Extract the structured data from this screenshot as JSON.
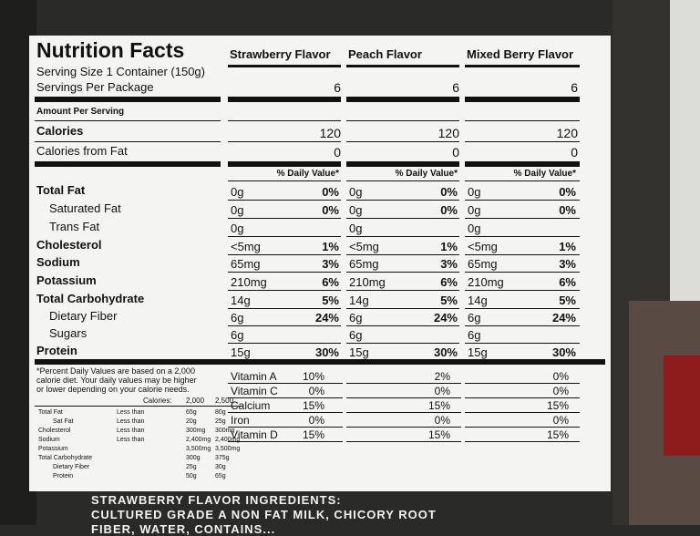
{
  "header": {
    "title": "Nutrition Facts",
    "serving_size": "Serving Size 1 Container (150g)",
    "servings_per": "Servings Per Package",
    "amount_per": "Amount Per Serving"
  },
  "flavors": [
    "Strawberry Flavor",
    "Peach Flavor",
    "Mixed Berry Flavor"
  ],
  "servings": [
    "6",
    "6",
    "6"
  ],
  "labels": {
    "calories": "Calories",
    "calories_fat": "Calories from Fat",
    "total_fat": "Total Fat",
    "sat_fat": "Saturated Fat",
    "trans_fat": "Trans Fat",
    "cholesterol": "Cholesterol",
    "sodium": "Sodium",
    "potassium": "Potassium",
    "carbs": "Total Carbohydrate",
    "fiber": "Dietary Fiber",
    "sugars": "Sugars",
    "protein": "Protein",
    "dv": "% Daily Value*"
  },
  "cols": [
    {
      "calories": "120",
      "cal_fat": "0",
      "fat": "0g",
      "fat_dv": "0%",
      "sat": "0g",
      "sat_dv": "0%",
      "trans": "0g",
      "chol": "<5mg",
      "chol_dv": "1%",
      "sod": "65mg",
      "sod_dv": "3%",
      "pot": "210mg",
      "pot_dv": "6%",
      "carb": "14g",
      "carb_dv": "5%",
      "fib": "6g",
      "fib_dv": "24%",
      "sug": "6g",
      "pro": "15g",
      "pro_dv": "30%",
      "vita": "10%",
      "vitc": "0%",
      "calc": "15%",
      "iron": "0%",
      "vitd": "15%"
    },
    {
      "calories": "120",
      "cal_fat": "0",
      "fat": "0g",
      "fat_dv": "0%",
      "sat": "0g",
      "sat_dv": "0%",
      "trans": "0g",
      "chol": "<5mg",
      "chol_dv": "1%",
      "sod": "65mg",
      "sod_dv": "3%",
      "pot": "210mg",
      "pot_dv": "6%",
      "carb": "14g",
      "carb_dv": "5%",
      "fib": "6g",
      "fib_dv": "24%",
      "sug": "6g",
      "pro": "15g",
      "pro_dv": "30%",
      "vita": "2%",
      "vitc": "0%",
      "calc": "15%",
      "iron": "0%",
      "vitd": "15%"
    },
    {
      "calories": "120",
      "cal_fat": "0",
      "fat": "0g",
      "fat_dv": "0%",
      "sat": "0g",
      "sat_dv": "0%",
      "trans": "0g",
      "chol": "<5mg",
      "chol_dv": "1%",
      "sod": "65mg",
      "sod_dv": "3%",
      "pot": "210mg",
      "pot_dv": "6%",
      "carb": "14g",
      "carb_dv": "5%",
      "fib": "6g",
      "fib_dv": "24%",
      "sug": "6g",
      "pro": "15g",
      "pro_dv": "30%",
      "vita": "0%",
      "vitc": "0%",
      "calc": "15%",
      "iron": "0%",
      "vitd": "15%"
    }
  ],
  "vitamins": {
    "a": "Vitamin A",
    "c": "Vitamin C",
    "calcium": "Calcium",
    "iron": "Iron",
    "d": "Vitamin D"
  },
  "footnote": {
    "line1": "*Percent Daily Values are based on a 2,000",
    "line2": "calorie diet. Your daily values may be higher",
    "line3": "or lower depending on your calorie needs.",
    "calories_label": "Calories:",
    "cal1": "2,000",
    "cal2": "2,500",
    "rows": [
      {
        "name": "Total Fat",
        "cond": "Less than",
        "v1": "65g",
        "v2": "80g"
      },
      {
        "name": "Sat Fat",
        "cond": "Less than",
        "v1": "20g",
        "v2": "25g"
      },
      {
        "name": "Cholesterol",
        "cond": "Less than",
        "v1": "300mg",
        "v2": "300mg"
      },
      {
        "name": "Sodium",
        "cond": "Less than",
        "v1": "2,400mg",
        "v2": "2,400mg"
      },
      {
        "name": "Potassium",
        "cond": "",
        "v1": "3,500mg",
        "v2": "3,500mg"
      },
      {
        "name": "Total Carbohydrate",
        "cond": "",
        "v1": "300g",
        "v2": "375g"
      },
      {
        "name": "Dietary Fiber",
        "cond": "",
        "v1": "25g",
        "v2": "30g"
      },
      {
        "name": "Protein",
        "cond": "",
        "v1": "50g",
        "v2": "65g"
      }
    ]
  },
  "ingredients": {
    "line1": "STRAWBERRY  FLAVOR  INGREDIENTS:",
    "line2": "CULTURED GRADE A NON FAT MILK, CHICORY ROOT",
    "line3": "FIBER, WATER, CONTAINS..."
  }
}
